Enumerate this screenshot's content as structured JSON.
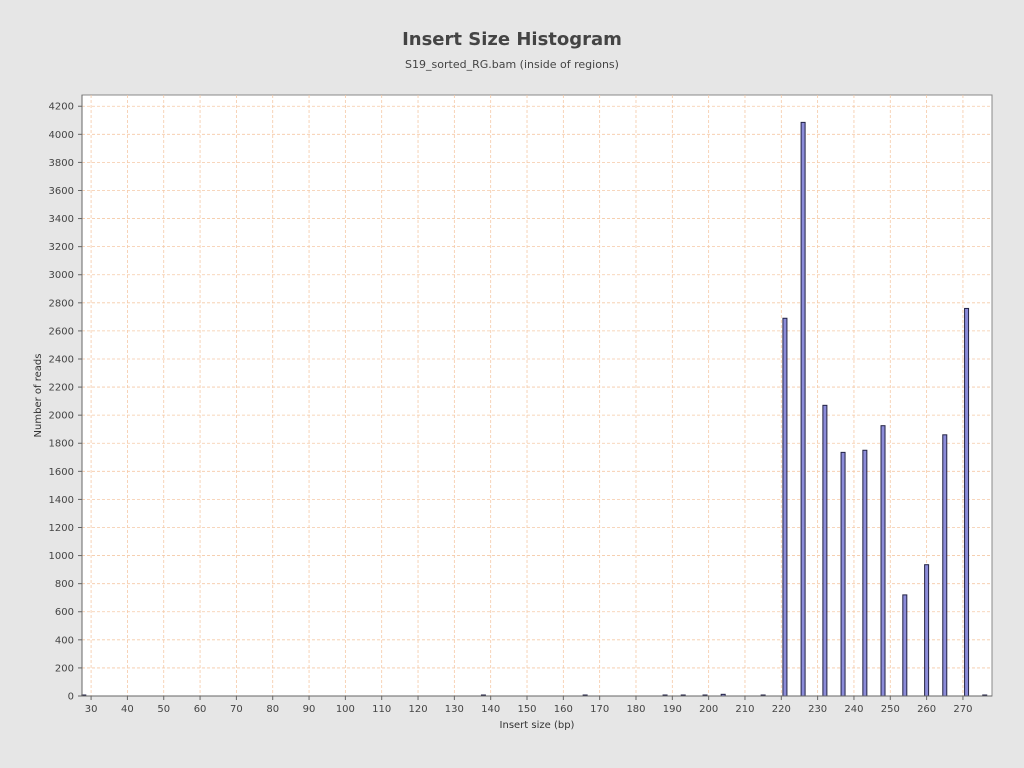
{
  "chart_data": {
    "type": "bar",
    "title": "Insert Size Histogram",
    "subtitle": "S19_sorted_RG.bam (inside of regions)",
    "xlabel": "Insert size (bp)",
    "ylabel": "Number of reads",
    "xlim": [
      27.5,
      278
    ],
    "ylim": [
      0,
      4280
    ],
    "x_ticks": [
      30,
      40,
      50,
      60,
      70,
      80,
      90,
      100,
      110,
      120,
      130,
      140,
      150,
      160,
      170,
      180,
      190,
      200,
      210,
      220,
      230,
      240,
      250,
      260,
      270
    ],
    "y_ticks": [
      0,
      200,
      400,
      600,
      800,
      1000,
      1200,
      1400,
      1600,
      1800,
      2000,
      2200,
      2400,
      2600,
      2800,
      3000,
      3200,
      3400,
      3600,
      3800,
      4000,
      4200
    ],
    "grid": true,
    "bar_color": "#8c8cd9",
    "x": [
      28,
      138,
      166,
      188,
      193,
      199,
      204,
      215,
      221,
      226,
      232,
      237,
      243,
      248,
      254,
      260,
      265,
      271,
      276
    ],
    "values": [
      2,
      3,
      3,
      4,
      4,
      5,
      12,
      4,
      2690,
      4085,
      2070,
      1735,
      1750,
      1925,
      720,
      935,
      1860,
      2760,
      2
    ]
  }
}
